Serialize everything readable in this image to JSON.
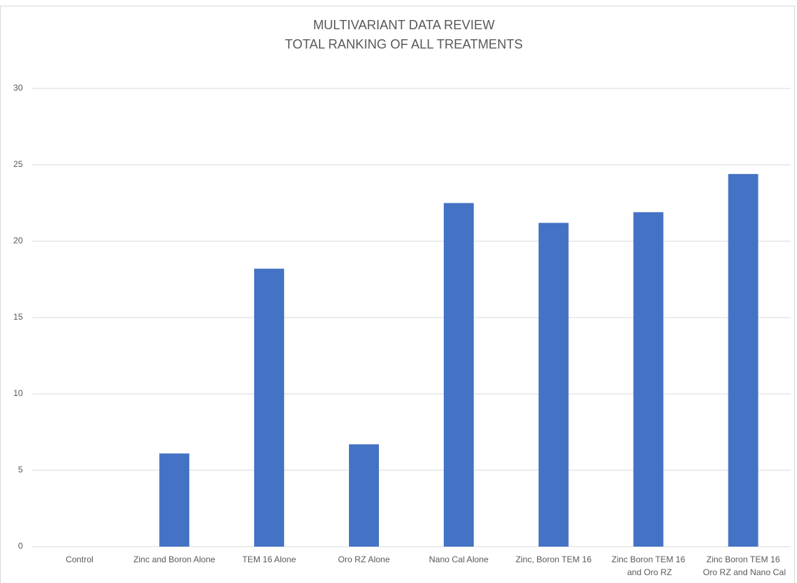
{
  "chart_data": {
    "type": "bar",
    "title": "MULTIVARIANT DATA REVIEW",
    "subtitle": "TOTAL RANKING OF ALL TREATMENTS",
    "categories": [
      "Control",
      "Zinc and Boron Alone",
      "TEM 16  Alone",
      "Oro RZ  Alone",
      "Nano Cal Alone",
      "Zinc, Boron TEM 16",
      "Zinc Boron TEM 16\nand Oro RZ",
      "Zinc Boron TEM 16\nOro RZ and Nano Cal"
    ],
    "values": [
      0,
      6.1,
      18.2,
      6.7,
      22.5,
      21.2,
      21.9,
      24.4
    ],
    "color": "#4472c4",
    "ylim": [
      0,
      30
    ],
    "yticks": [
      0,
      5,
      10,
      15,
      20,
      25,
      30
    ],
    "grid": true
  }
}
